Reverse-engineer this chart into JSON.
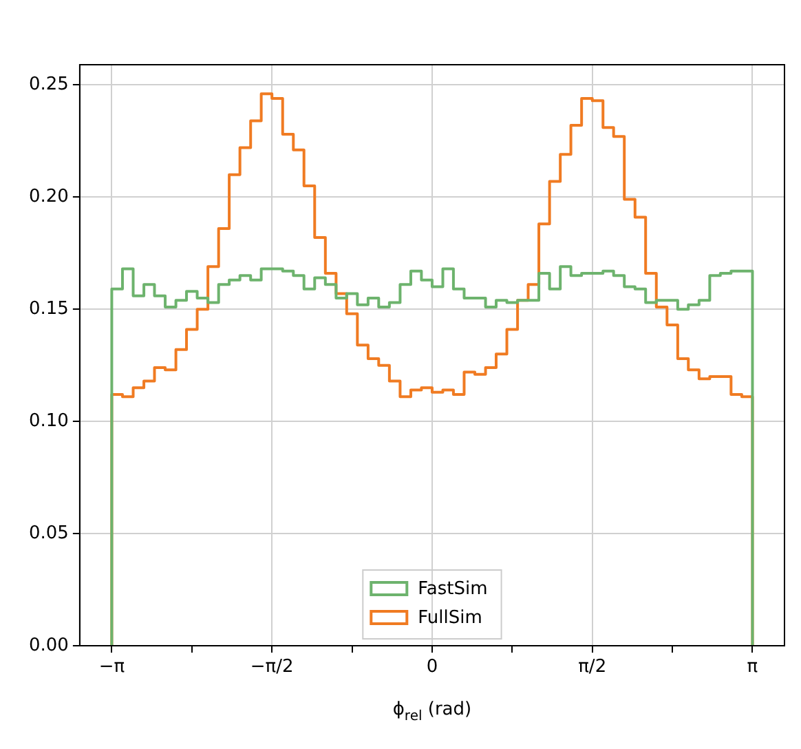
{
  "chart_data": {
    "type": "histogram",
    "xlabel": "ϕ$_{rel}$ (rad)",
    "bins": [
      -3.142,
      -3.037,
      -2.932,
      -2.827,
      -2.723,
      -2.618,
      -2.513,
      -2.409,
      -2.304,
      -2.199,
      -2.094,
      -1.99,
      -1.885,
      -1.78,
      -1.676,
      -1.571,
      -1.466,
      -1.361,
      -1.257,
      -1.152,
      -1.047,
      -0.942,
      -0.838,
      -0.733,
      -0.628,
      -0.524,
      -0.419,
      -0.314,
      -0.209,
      -0.105,
      0,
      0.105,
      0.209,
      0.314,
      0.419,
      0.524,
      0.628,
      0.733,
      0.838,
      0.942,
      1.047,
      1.152,
      1.257,
      1.361,
      1.466,
      1.571,
      1.676,
      1.78,
      1.885,
      1.99,
      2.094,
      2.199,
      2.304,
      2.409,
      2.513,
      2.618,
      2.723,
      2.827,
      2.932,
      3.037,
      3.142
    ],
    "series": [
      {
        "name": "FastSim",
        "color": "#6db36d",
        "values": [
          0.159,
          0.168,
          0.156,
          0.161,
          0.156,
          0.151,
          0.154,
          0.158,
          0.155,
          0.153,
          0.161,
          0.163,
          0.165,
          0.163,
          0.168,
          0.168,
          0.167,
          0.165,
          0.159,
          0.164,
          0.161,
          0.155,
          0.157,
          0.152,
          0.155,
          0.151,
          0.153,
          0.161,
          0.167,
          0.163,
          0.16,
          0.168,
          0.159,
          0.155,
          0.155,
          0.151,
          0.154,
          0.153,
          0.154,
          0.154,
          0.166,
          0.159,
          0.169,
          0.165,
          0.166,
          0.166,
          0.167,
          0.165,
          0.16,
          0.159,
          0.153,
          0.154,
          0.154,
          0.15,
          0.152,
          0.154,
          0.165,
          0.166,
          0.167,
          0.167
        ]
      },
      {
        "name": "FullSim",
        "color": "#f07b22",
        "values": [
          0.112,
          0.111,
          0.115,
          0.118,
          0.124,
          0.123,
          0.132,
          0.141,
          0.15,
          0.169,
          0.186,
          0.21,
          0.222,
          0.234,
          0.246,
          0.244,
          0.228,
          0.221,
          0.205,
          0.182,
          0.166,
          0.157,
          0.148,
          0.134,
          0.128,
          0.125,
          0.118,
          0.111,
          0.114,
          0.115,
          0.113,
          0.114,
          0.112,
          0.122,
          0.121,
          0.124,
          0.13,
          0.141,
          0.154,
          0.161,
          0.188,
          0.207,
          0.219,
          0.232,
          0.244,
          0.243,
          0.231,
          0.227,
          0.199,
          0.191,
          0.166,
          0.151,
          0.143,
          0.128,
          0.123,
          0.119,
          0.12,
          0.12,
          0.112,
          0.111
        ]
      }
    ],
    "xlim": [
      -3.456,
      3.456
    ],
    "xticks": [
      {
        "value": -3.1416,
        "label": "−π"
      },
      {
        "value": -2.3562,
        "label": null
      },
      {
        "value": -1.5708,
        "label": "−π/2"
      },
      {
        "value": -0.7854,
        "label": null
      },
      0,
      {
        "value": 0.7854,
        "label": null
      },
      {
        "value": 1.5708,
        "label": "π/2"
      },
      {
        "value": 2.3562,
        "label": null
      },
      {
        "value": 3.1416,
        "label": "π"
      }
    ],
    "ylim": [
      0,
      0.259
    ],
    "yticks": [
      {
        "value": 0,
        "label": "0.00"
      },
      {
        "value": 0.05,
        "label": "0.05"
      },
      {
        "value": 0.1,
        "label": "0.10"
      },
      {
        "value": 0.15,
        "label": "0.15"
      },
      {
        "value": 0.2,
        "label": "0.20"
      },
      {
        "value": 0.25,
        "label": "0.25"
      }
    ],
    "grid": true,
    "legend": "bottom"
  }
}
